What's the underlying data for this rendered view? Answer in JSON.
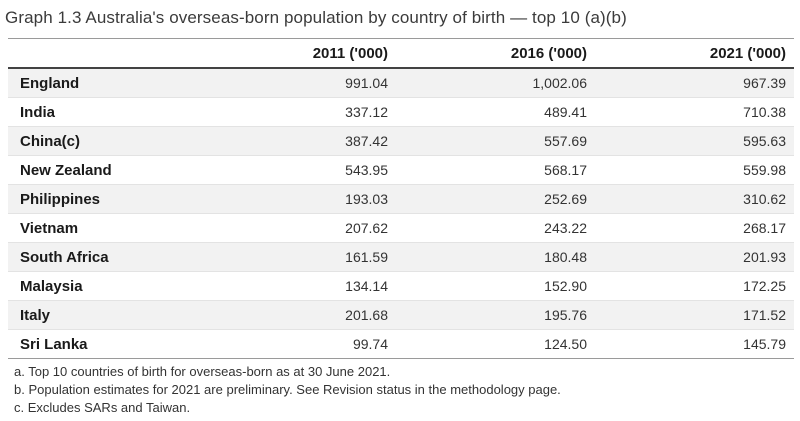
{
  "title": "Graph 1.3 Australia's overseas-born population by country of birth — top 10 (a)(b)",
  "table": {
    "headers": {
      "country": "",
      "y2011": "2011 ('000)",
      "y2016": "2016 ('000)",
      "y2021": "2021 ('000)"
    },
    "rows": [
      {
        "country": "England",
        "v2011": "991.04",
        "v2016": "1,002.06",
        "v2021": "967.39"
      },
      {
        "country": "India",
        "v2011": "337.12",
        "v2016": "489.41",
        "v2021": "710.38"
      },
      {
        "country": "China(c)",
        "v2011": "387.42",
        "v2016": "557.69",
        "v2021": "595.63"
      },
      {
        "country": "New Zealand",
        "v2011": "543.95",
        "v2016": "568.17",
        "v2021": "559.98"
      },
      {
        "country": "Philippines",
        "v2011": "193.03",
        "v2016": "252.69",
        "v2021": "310.62"
      },
      {
        "country": "Vietnam",
        "v2011": "207.62",
        "v2016": "243.22",
        "v2021": "268.17"
      },
      {
        "country": "South Africa",
        "v2011": "161.59",
        "v2016": "180.48",
        "v2021": "201.93"
      },
      {
        "country": "Malaysia",
        "v2011": "134.14",
        "v2016": "152.90",
        "v2021": "172.25"
      },
      {
        "country": "Italy",
        "v2011": "201.68",
        "v2016": "195.76",
        "v2021": "171.52"
      },
      {
        "country": "Sri Lanka",
        "v2011": "99.74",
        "v2016": "124.50",
        "v2021": "145.79"
      }
    ]
  },
  "footnotes": [
    "a. Top 10 countries of birth for overseas-born as at 30 June 2021.",
    "b. Population estimates for 2021 are preliminary. See Revision status in the methodology page.",
    "c. Excludes SARs and Taiwan."
  ],
  "colors": {
    "stripe": "#f2f2f2",
    "row_border": "#e3e3e3",
    "outer_border": "#9a9a9a",
    "header_underline": "#424242",
    "text": "#333333"
  },
  "chart_data": {
    "type": "table",
    "title": "Graph 1.3 Australia's overseas-born population by country of birth — top 10 (a)(b)",
    "categories": [
      "England",
      "India",
      "China(c)",
      "New Zealand",
      "Philippines",
      "Vietnam",
      "South Africa",
      "Malaysia",
      "Italy",
      "Sri Lanka"
    ],
    "series": [
      {
        "name": "2011 ('000)",
        "values": [
          991.04,
          337.12,
          387.42,
          543.95,
          193.03,
          207.62,
          161.59,
          134.14,
          201.68,
          99.74
        ]
      },
      {
        "name": "2016 ('000)",
        "values": [
          1002.06,
          489.41,
          557.69,
          568.17,
          252.69,
          243.22,
          180.48,
          152.9,
          195.76,
          124.5
        ]
      },
      {
        "name": "2021 ('000)",
        "values": [
          967.39,
          710.38,
          595.63,
          559.98,
          310.62,
          268.17,
          201.93,
          172.25,
          171.52,
          145.79
        ]
      }
    ],
    "footnotes": [
      "a. Top 10 countries of birth for overseas-born as at 30 June 2021.",
      "b. Population estimates for 2021 are preliminary. See Revision status in the methodology page.",
      "c. Excludes SARs and Taiwan."
    ]
  }
}
